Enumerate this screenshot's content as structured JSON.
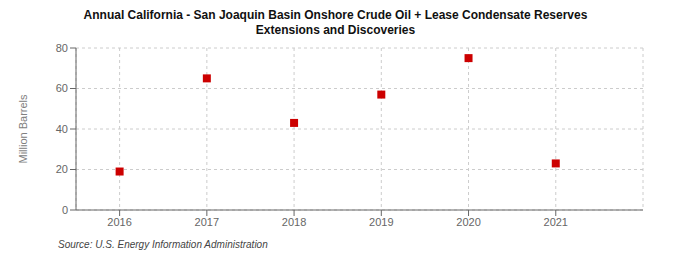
{
  "chart_data": {
    "type": "scatter",
    "title": "Annual California - San Joaquin Basin Onshore Crude Oil + Lease Condensate Reserves\nExtensions and Discoveries",
    "ylabel": "Million Barrels",
    "annotations": [
      "Source: U.S. Energy Information Administration"
    ],
    "x": [
      2016,
      2017,
      2018,
      2019,
      2020,
      2021
    ],
    "values": [
      19,
      65,
      43,
      57,
      75,
      23
    ],
    "color": "#cc0000",
    "marker": "square",
    "xlim": [
      2015.5,
      2022.0
    ],
    "xticks": [
      2016,
      2017,
      2018,
      2019,
      2020,
      2021
    ],
    "ylim": [
      0,
      80
    ],
    "yticks": [
      0,
      20,
      40,
      60,
      80
    ],
    "grid": true
  }
}
